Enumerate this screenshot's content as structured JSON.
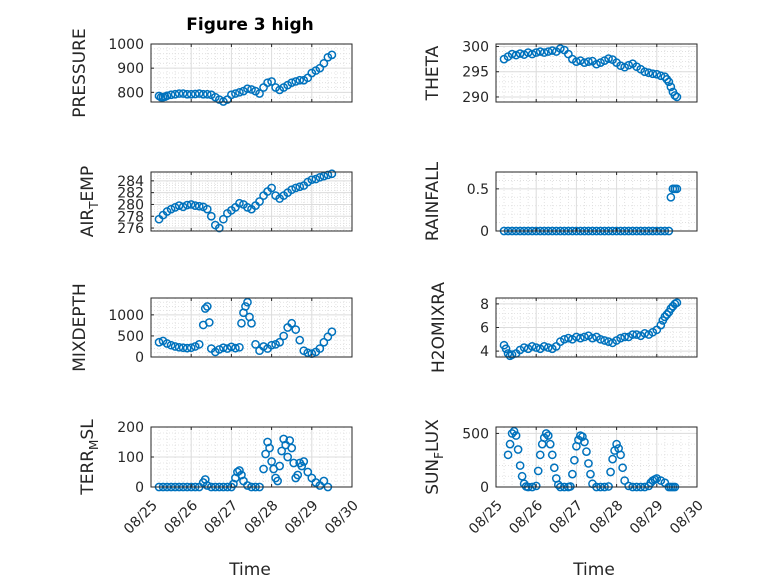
{
  "figure": {
    "title": "Figure 3 high",
    "xlabel": "Time",
    "x_ticks": [
      "08/25",
      "08/26",
      "08/27",
      "08/28",
      "08/29",
      "08/30"
    ],
    "marker_color": "#0072BD",
    "grid_color": "#dcdcdc",
    "axes_color": "#262626"
  },
  "chart_data": [
    {
      "type": "scatter",
      "ylabel": "PRESSURE",
      "ylabel_sub": "",
      "ylabel_rest": "",
      "xlim": [
        0,
        5
      ],
      "ylim": [
        760,
        1000
      ],
      "yticks": [
        800,
        900,
        1000
      ],
      "x": [
        0.2,
        0.25,
        0.3,
        0.35,
        0.4,
        0.5,
        0.6,
        0.7,
        0.8,
        0.9,
        1.0,
        1.1,
        1.2,
        1.3,
        1.4,
        1.5,
        1.6,
        1.7,
        1.8,
        1.9,
        2.0,
        2.1,
        2.2,
        2.3,
        2.4,
        2.5,
        2.6,
        2.7,
        2.8,
        2.9,
        3.0,
        3.1,
        3.2,
        3.3,
        3.4,
        3.5,
        3.6,
        3.7,
        3.8,
        3.9,
        4.0,
        4.1,
        4.2,
        4.3,
        4.4,
        4.5
      ],
      "y": [
        785,
        780,
        780,
        782,
        786,
        790,
        792,
        795,
        795,
        792,
        792,
        793,
        795,
        792,
        792,
        790,
        780,
        770,
        762,
        770,
        790,
        795,
        800,
        805,
        815,
        812,
        805,
        795,
        820,
        840,
        845,
        820,
        810,
        820,
        830,
        840,
        845,
        850,
        850,
        860,
        880,
        890,
        900,
        920,
        945,
        955
      ]
    },
    {
      "type": "scatter",
      "ylabel": "THETA",
      "ylabel_sub": "",
      "ylabel_rest": "",
      "xlim": [
        0,
        5
      ],
      "ylim": [
        289,
        300.5
      ],
      "yticks": [
        290,
        295,
        300
      ],
      "x": [
        0.2,
        0.3,
        0.4,
        0.5,
        0.6,
        0.7,
        0.8,
        0.9,
        1.0,
        1.1,
        1.2,
        1.3,
        1.4,
        1.5,
        1.6,
        1.7,
        1.8,
        1.9,
        2.0,
        2.1,
        2.2,
        2.3,
        2.4,
        2.5,
        2.6,
        2.7,
        2.8,
        2.9,
        3.0,
        3.1,
        3.2,
        3.3,
        3.4,
        3.5,
        3.6,
        3.7,
        3.8,
        3.9,
        4.0,
        4.1,
        4.2,
        4.25,
        4.3,
        4.35,
        4.4,
        4.45,
        4.5
      ],
      "y": [
        297.5,
        298,
        298.5,
        298.3,
        298.6,
        298.4,
        298.8,
        298.5,
        298.8,
        299,
        298.8,
        299,
        299.2,
        299,
        299.6,
        299.3,
        298.5,
        297.5,
        297,
        297.2,
        296.8,
        297,
        297.1,
        296.5,
        296.8,
        297.2,
        297.6,
        297.4,
        296.8,
        296.2,
        295.9,
        296.3,
        296.6,
        296,
        295.5,
        295,
        294.8,
        294.6,
        294.5,
        294.2,
        294,
        293.5,
        293,
        292,
        291,
        290.3,
        290
      ]
    },
    {
      "type": "scatter",
      "ylabel": "AIR",
      "ylabel_sub": "T",
      "ylabel_rest": "EMP",
      "xlim": [
        0,
        5
      ],
      "ylim": [
        275.5,
        285.5
      ],
      "yticks": [
        276,
        278,
        280,
        282,
        284
      ],
      "x": [
        0.2,
        0.3,
        0.4,
        0.5,
        0.6,
        0.7,
        0.8,
        0.9,
        1.0,
        1.1,
        1.2,
        1.3,
        1.4,
        1.5,
        1.6,
        1.7,
        1.8,
        1.9,
        2.0,
        2.1,
        2.2,
        2.3,
        2.4,
        2.5,
        2.6,
        2.7,
        2.8,
        2.9,
        3.0,
        3.1,
        3.2,
        3.3,
        3.4,
        3.5,
        3.6,
        3.7,
        3.8,
        3.9,
        4.0,
        4.1,
        4.2,
        4.3,
        4.4,
        4.5
      ],
      "y": [
        277.5,
        278.2,
        278.8,
        279.2,
        279.5,
        279.8,
        279.6,
        279.9,
        280,
        279.8,
        279.7,
        279.6,
        279.2,
        278,
        276.5,
        276,
        277.5,
        278.5,
        279,
        279.5,
        280.2,
        280,
        279.5,
        279.2,
        279.8,
        280.5,
        281.5,
        282.2,
        282.8,
        281.5,
        281,
        281.5,
        282,
        282.5,
        282.8,
        283,
        283.2,
        283.8,
        284.2,
        284.3,
        284.6,
        284.8,
        285,
        285.2
      ]
    },
    {
      "type": "scatter",
      "ylabel": "RAINFALL",
      "ylabel_sub": "",
      "ylabel_rest": "",
      "xlim": [
        0,
        5
      ],
      "ylim": [
        0,
        0.7
      ],
      "yticks": [
        0,
        0.5
      ],
      "x": [
        0.2,
        0.3,
        0.4,
        0.5,
        0.6,
        0.7,
        0.8,
        0.9,
        1.0,
        1.1,
        1.2,
        1.3,
        1.4,
        1.5,
        1.6,
        1.7,
        1.8,
        1.9,
        2.0,
        2.1,
        2.2,
        2.3,
        2.4,
        2.5,
        2.6,
        2.7,
        2.8,
        2.9,
        3.0,
        3.1,
        3.2,
        3.3,
        3.4,
        3.5,
        3.6,
        3.7,
        3.8,
        3.9,
        4.0,
        4.1,
        4.2,
        4.3,
        4.35,
        4.4,
        4.45,
        4.5
      ],
      "y": [
        0,
        0,
        0,
        0,
        0,
        0,
        0,
        0,
        0,
        0,
        0,
        0,
        0,
        0,
        0,
        0,
        0,
        0,
        0,
        0,
        0,
        0,
        0,
        0,
        0,
        0,
        0,
        0,
        0,
        0,
        0,
        0,
        0,
        0,
        0,
        0,
        0,
        0,
        0,
        0,
        0,
        0,
        0.4,
        0.5,
        0.5,
        0.5
      ]
    },
    {
      "type": "scatter",
      "ylabel": "MIXDEPTH",
      "ylabel_sub": "",
      "ylabel_rest": "",
      "xlim": [
        0,
        5
      ],
      "ylim": [
        0,
        1400
      ],
      "yticks": [
        0,
        500,
        1000
      ],
      "x": [
        0.2,
        0.3,
        0.4,
        0.5,
        0.6,
        0.7,
        0.8,
        0.9,
        1.0,
        1.1,
        1.2,
        1.3,
        1.35,
        1.4,
        1.45,
        1.5,
        1.6,
        1.7,
        1.8,
        1.9,
        2.0,
        2.1,
        2.2,
        2.25,
        2.3,
        2.35,
        2.4,
        2.45,
        2.5,
        2.6,
        2.7,
        2.8,
        2.9,
        3.0,
        3.1,
        3.2,
        3.3,
        3.4,
        3.5,
        3.6,
        3.7,
        3.8,
        3.9,
        4.0,
        4.1,
        4.2,
        4.3,
        4.4,
        4.5
      ],
      "y": [
        350,
        380,
        320,
        280,
        250,
        230,
        220,
        210,
        220,
        250,
        300,
        760,
        1150,
        1200,
        820,
        200,
        120,
        180,
        220,
        200,
        240,
        210,
        230,
        800,
        1050,
        1200,
        1300,
        950,
        800,
        300,
        150,
        250,
        200,
        280,
        300,
        350,
        500,
        700,
        800,
        650,
        400,
        150,
        100,
        80,
        120,
        200,
        350,
        480,
        600
      ]
    },
    {
      "type": "scatter",
      "ylabel": "H2OMIXRA",
      "ylabel_sub": "",
      "ylabel_rest": "",
      "xlim": [
        0,
        5
      ],
      "ylim": [
        3.5,
        8.5
      ],
      "yticks": [
        4,
        6,
        8
      ],
      "x": [
        0.2,
        0.25,
        0.3,
        0.35,
        0.4,
        0.5,
        0.6,
        0.7,
        0.8,
        0.9,
        1.0,
        1.1,
        1.2,
        1.3,
        1.4,
        1.5,
        1.6,
        1.7,
        1.8,
        1.9,
        2.0,
        2.1,
        2.2,
        2.3,
        2.4,
        2.5,
        2.6,
        2.7,
        2.8,
        2.9,
        3.0,
        3.1,
        3.2,
        3.3,
        3.4,
        3.5,
        3.6,
        3.7,
        3.8,
        3.9,
        4.0,
        4.1,
        4.15,
        4.2,
        4.25,
        4.3,
        4.35,
        4.4,
        4.45,
        4.5
      ],
      "y": [
        4.5,
        4.2,
        3.8,
        3.6,
        3.7,
        3.8,
        4.1,
        4.3,
        4.2,
        4.4,
        4.3,
        4.2,
        4.4,
        4.3,
        4.2,
        4.4,
        4.8,
        5.0,
        5.1,
        5.0,
        5.2,
        5.1,
        5.2,
        5.3,
        5.1,
        5.2,
        5.0,
        4.9,
        4.8,
        4.7,
        4.9,
        5.1,
        5.2,
        5.2,
        5.4,
        5.4,
        5.3,
        5.5,
        5.4,
        5.6,
        5.8,
        6.2,
        6.6,
        6.9,
        7.1,
        7.3,
        7.6,
        7.8,
        8.0,
        8.1
      ]
    },
    {
      "type": "scatter",
      "ylabel": "TERR",
      "ylabel_sub": "M",
      "ylabel_rest": "SL",
      "xlim": [
        0,
        5
      ],
      "ylim": [
        0,
        200
      ],
      "yticks": [
        0,
        100,
        200
      ],
      "x": [
        0.2,
        0.3,
        0.4,
        0.5,
        0.6,
        0.7,
        0.8,
        0.9,
        1.0,
        1.1,
        1.2,
        1.3,
        1.35,
        1.4,
        1.5,
        1.6,
        1.7,
        1.8,
        1.9,
        2.0,
        2.05,
        2.1,
        2.15,
        2.2,
        2.25,
        2.3,
        2.4,
        2.5,
        2.6,
        2.7,
        2.8,
        2.85,
        2.9,
        2.95,
        3.0,
        3.05,
        3.1,
        3.15,
        3.2,
        3.25,
        3.3,
        3.35,
        3.4,
        3.45,
        3.5,
        3.55,
        3.6,
        3.65,
        3.7,
        3.75,
        3.8,
        3.9,
        4.0,
        4.1,
        4.2,
        4.3,
        4.4
      ],
      "y": [
        0,
        0,
        0,
        0,
        0,
        0,
        0,
        0,
        0,
        0,
        0,
        15,
        25,
        5,
        0,
        0,
        0,
        0,
        0,
        0,
        10,
        30,
        50,
        55,
        40,
        20,
        5,
        0,
        0,
        0,
        60,
        110,
        150,
        130,
        85,
        60,
        30,
        20,
        70,
        120,
        160,
        140,
        100,
        155,
        130,
        80,
        30,
        40,
        80,
        70,
        85,
        50,
        30,
        15,
        5,
        20,
        0
      ]
    },
    {
      "type": "scatter",
      "ylabel": "SUN",
      "ylabel_sub": "F",
      "ylabel_rest": "LUX",
      "xlim": [
        0,
        5
      ],
      "ylim": [
        0,
        560
      ],
      "yticks": [
        0,
        500
      ],
      "x": [
        0.3,
        0.35,
        0.4,
        0.45,
        0.5,
        0.55,
        0.6,
        0.65,
        0.7,
        0.75,
        0.8,
        0.9,
        1.0,
        1.05,
        1.1,
        1.15,
        1.2,
        1.25,
        1.3,
        1.35,
        1.4,
        1.45,
        1.5,
        1.55,
        1.6,
        1.7,
        1.8,
        1.85,
        1.9,
        1.95,
        2.0,
        2.05,
        2.1,
        2.15,
        2.2,
        2.25,
        2.3,
        2.35,
        2.4,
        2.5,
        2.6,
        2.7,
        2.8,
        2.85,
        2.9,
        2.95,
        3.0,
        3.05,
        3.1,
        3.15,
        3.2,
        3.3,
        3.4,
        3.5,
        3.6,
        3.7,
        3.8,
        3.85,
        3.9,
        3.95,
        4.0,
        4.1,
        4.2,
        4.3,
        4.35,
        4.4,
        4.45
      ],
      "y": [
        300,
        400,
        500,
        520,
        480,
        350,
        200,
        100,
        30,
        5,
        0,
        0,
        10,
        150,
        300,
        400,
        460,
        500,
        480,
        400,
        300,
        180,
        80,
        20,
        0,
        0,
        0,
        5,
        120,
        250,
        380,
        440,
        480,
        470,
        420,
        330,
        220,
        120,
        30,
        0,
        0,
        0,
        5,
        140,
        260,
        340,
        400,
        360,
        300,
        180,
        60,
        10,
        0,
        0,
        0,
        0,
        10,
        40,
        60,
        70,
        80,
        60,
        40,
        0,
        0,
        0,
        0
      ]
    }
  ]
}
